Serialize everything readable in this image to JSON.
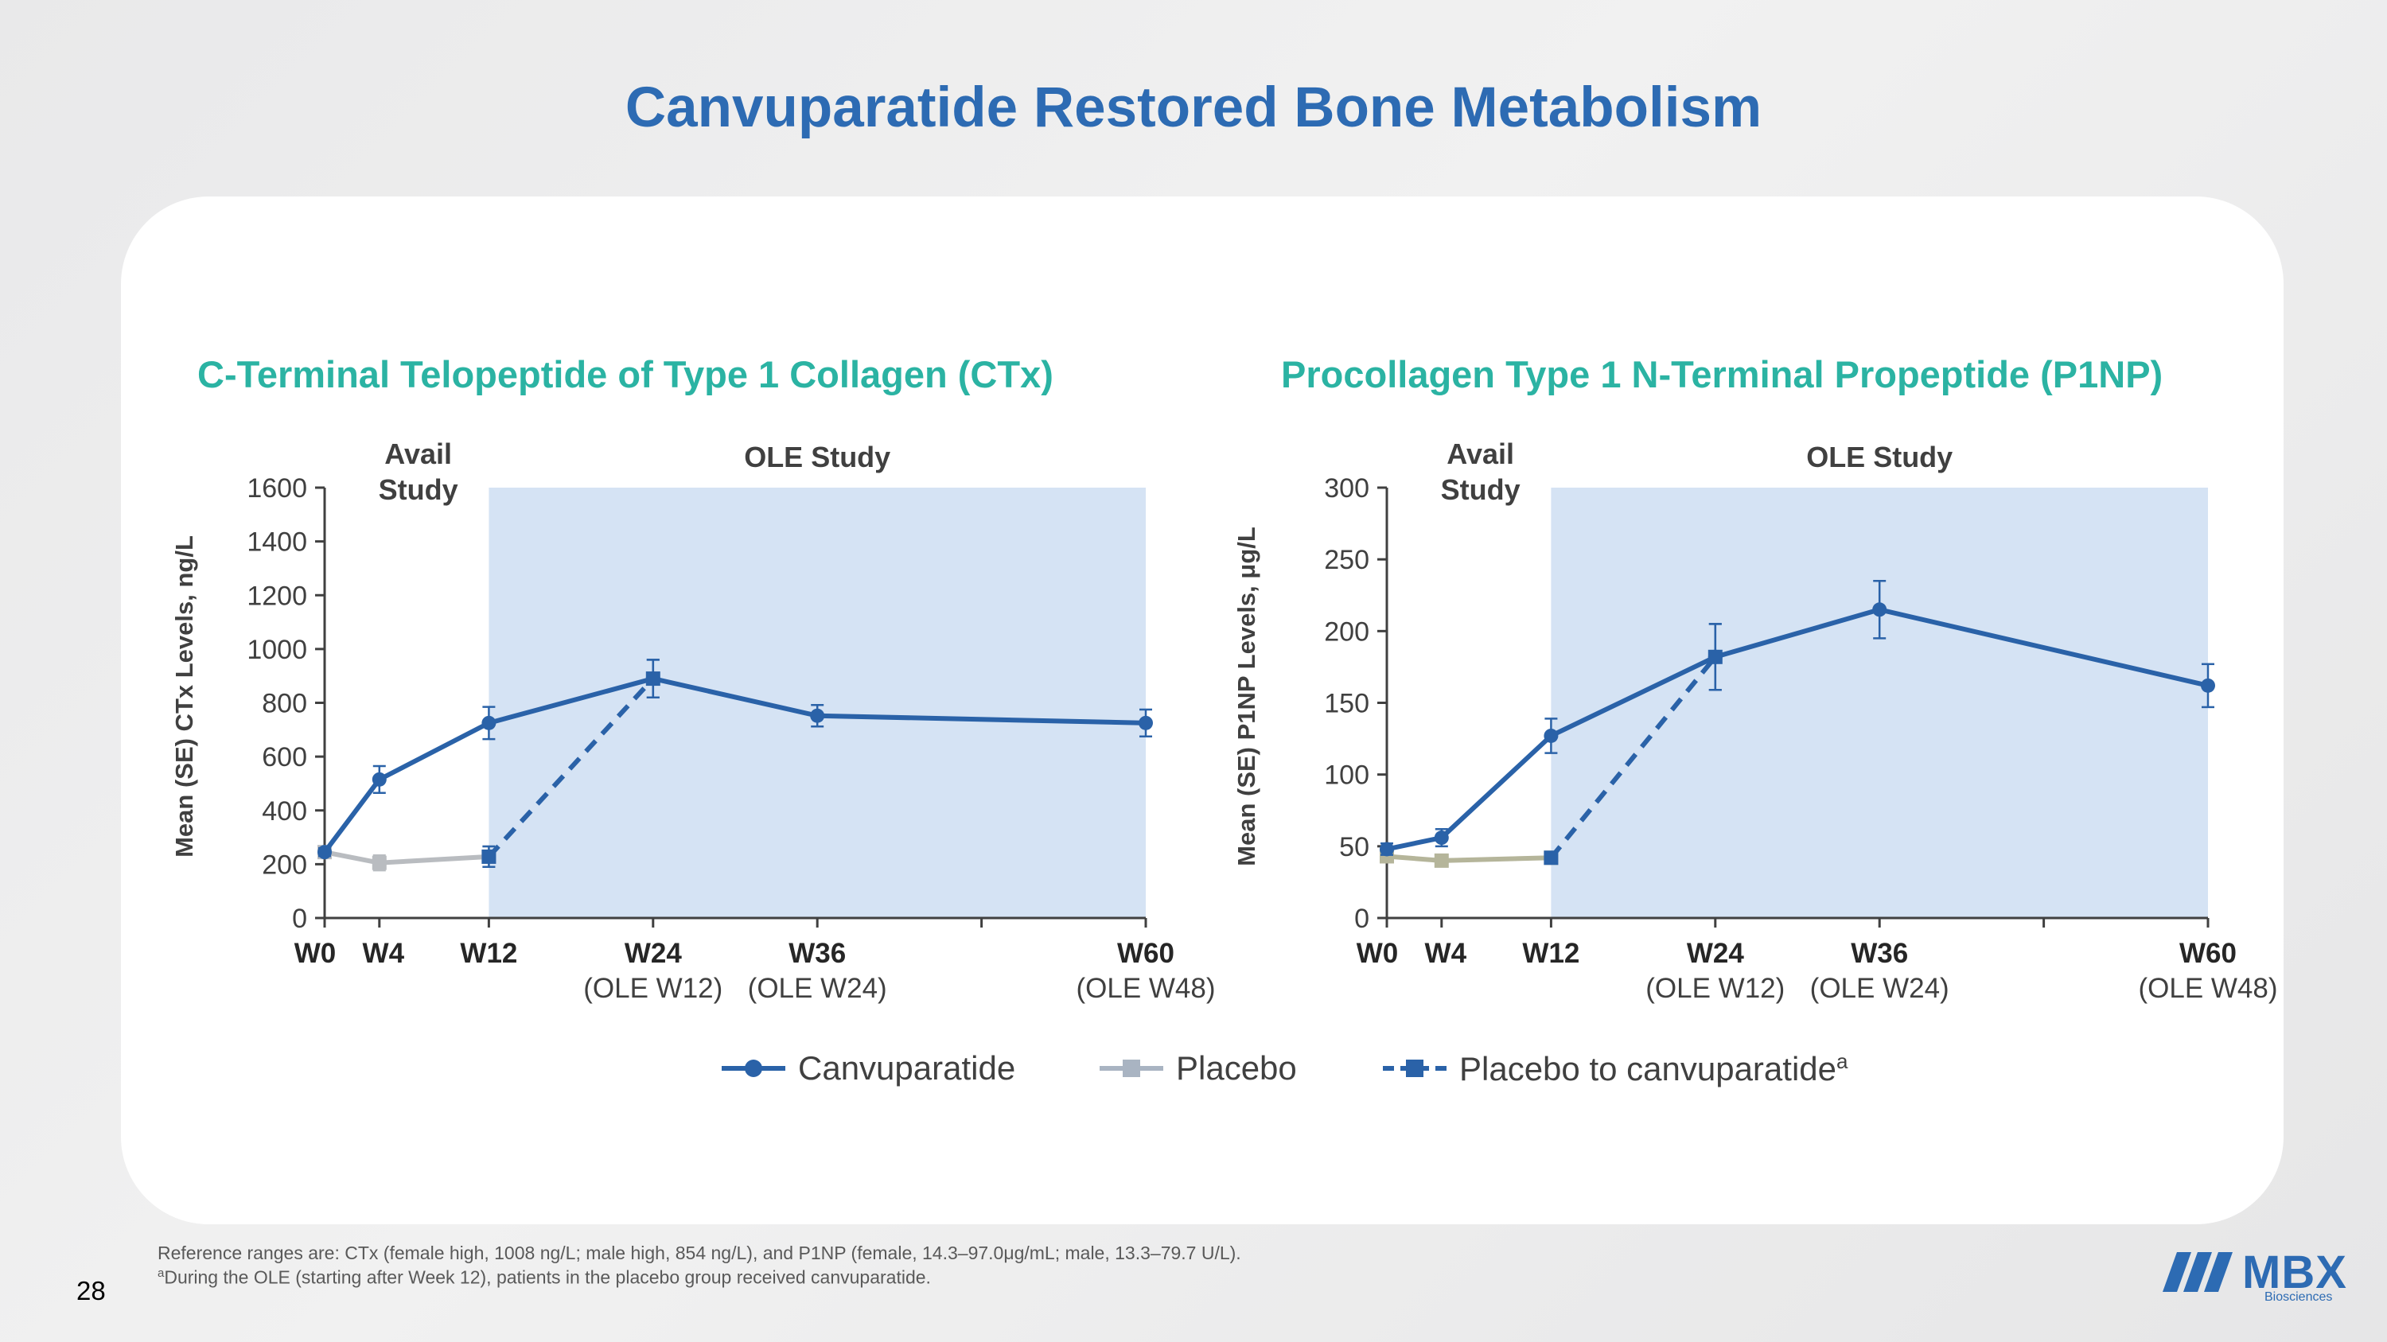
{
  "slide": {
    "title": "Canvuparatide Restored Bone Metabolism",
    "page_number": "28",
    "footnote_1": "Reference ranges are: CTx (female high, 1008 ng/L; male high, 854 ng/L), and P1NP (female, 14.3–97.0μg/mL; male, 13.3–79.7 U/L).",
    "footnote_2_sup": "a",
    "footnote_2": "During the OLE (starting after Week 12), patients in the placebo group received canvuparatide.",
    "logo": {
      "text": "MBX",
      "sub": "Biosciences"
    }
  },
  "colors": {
    "canvuparatide": "#2a62a8",
    "placebo_ctx": "#b9bcc0",
    "placebo_p1np": "#b5b59a",
    "placebo_to_canvuparatide": "#2a62a8",
    "ole_shading": "#d5e3f4",
    "chart_title": "#2bb3a3",
    "slide_title": "#2d6bb3"
  },
  "legend": {
    "items": [
      {
        "label": "Canvuparatide",
        "style": "solid-circle"
      },
      {
        "label": "Placebo",
        "style": "solid-square"
      },
      {
        "label": "Placebo to canvuparatide",
        "sup": "a",
        "style": "dashed-square"
      }
    ]
  },
  "chart_data": [
    {
      "type": "line",
      "title": "C-Terminal Telopeptide of Type 1 Collagen (CTx)",
      "ylabel": "Mean (SE) CTx Levels, ng/L",
      "ylim": [
        0,
        1600
      ],
      "yticks": [
        0,
        200,
        400,
        600,
        800,
        1000,
        1200,
        1400,
        1600
      ],
      "x_weeks_range": [
        0,
        60
      ],
      "xticks": [
        {
          "week": 0,
          "label": "W0",
          "sub": ""
        },
        {
          "week": 4,
          "label": "W4",
          "sub": ""
        },
        {
          "week": 12,
          "label": "W12",
          "sub": ""
        },
        {
          "week": 24,
          "label": "W24",
          "sub": "(OLE W12)"
        },
        {
          "week": 36,
          "label": "W36",
          "sub": "(OLE W24)"
        },
        {
          "week": 48,
          "label": "",
          "sub": ""
        },
        {
          "week": 60,
          "label": "W60",
          "sub": "(OLE W48)"
        }
      ],
      "regions": [
        {
          "label": "Avail\nStudy",
          "shaded": false,
          "from_week": 0,
          "to_week": 12
        },
        {
          "label": "OLE Study",
          "shaded": true,
          "from_week": 12,
          "to_week": 60
        }
      ],
      "series": [
        {
          "name": "Canvuparatide",
          "style": "solid-circle",
          "x": [
            0,
            4,
            12,
            24,
            36,
            60
          ],
          "y": [
            245,
            515,
            725,
            890,
            752,
            725
          ],
          "se": [
            15,
            50,
            60,
            70,
            40,
            50
          ]
        },
        {
          "name": "Placebo",
          "style": "solid-square",
          "x": [
            0,
            4,
            12
          ],
          "y": [
            245,
            205,
            228
          ],
          "se": [
            15,
            28,
            38
          ]
        },
        {
          "name": "Placebo to canvuparatide",
          "style": "dashed-square",
          "x": [
            12,
            24
          ],
          "y": [
            228,
            890
          ],
          "se": [
            38,
            70
          ]
        }
      ]
    },
    {
      "type": "line",
      "title": "Procollagen Type 1 N-Terminal Propeptide (P1NP)",
      "ylabel": "Mean (SE) P1NP Levels, μg/L",
      "ylim": [
        0,
        300
      ],
      "yticks": [
        0,
        50,
        100,
        150,
        200,
        250,
        300
      ],
      "x_weeks_range": [
        0,
        60
      ],
      "xticks": [
        {
          "week": 0,
          "label": "W0",
          "sub": ""
        },
        {
          "week": 4,
          "label": "W4",
          "sub": ""
        },
        {
          "week": 12,
          "label": "W12",
          "sub": ""
        },
        {
          "week": 24,
          "label": "W24",
          "sub": "(OLE W12)"
        },
        {
          "week": 36,
          "label": "W36",
          "sub": "(OLE W24)"
        },
        {
          "week": 48,
          "label": "",
          "sub": ""
        },
        {
          "week": 60,
          "label": "W60",
          "sub": "(OLE W48)"
        }
      ],
      "regions": [
        {
          "label": "Avail\nStudy",
          "shaded": false,
          "from_week": 0,
          "to_week": 12
        },
        {
          "label": "OLE Study",
          "shaded": true,
          "from_week": 12,
          "to_week": 60
        }
      ],
      "series": [
        {
          "name": "Canvuparatide",
          "style": "solid-circle",
          "x": [
            0,
            4,
            12,
            24,
            36,
            60
          ],
          "y": [
            48,
            56,
            127,
            182,
            215,
            162
          ],
          "se": [
            4,
            6,
            12,
            23,
            20,
            15
          ]
        },
        {
          "name": "Placebo",
          "style": "solid-square",
          "x": [
            0,
            4,
            12
          ],
          "y": [
            43,
            40,
            42
          ],
          "se": [
            4,
            3,
            3
          ]
        },
        {
          "name": "Placebo to canvuparatide",
          "style": "dashed-square",
          "x": [
            12,
            24
          ],
          "y": [
            42,
            182
          ],
          "se": [
            3,
            23
          ]
        }
      ]
    }
  ]
}
